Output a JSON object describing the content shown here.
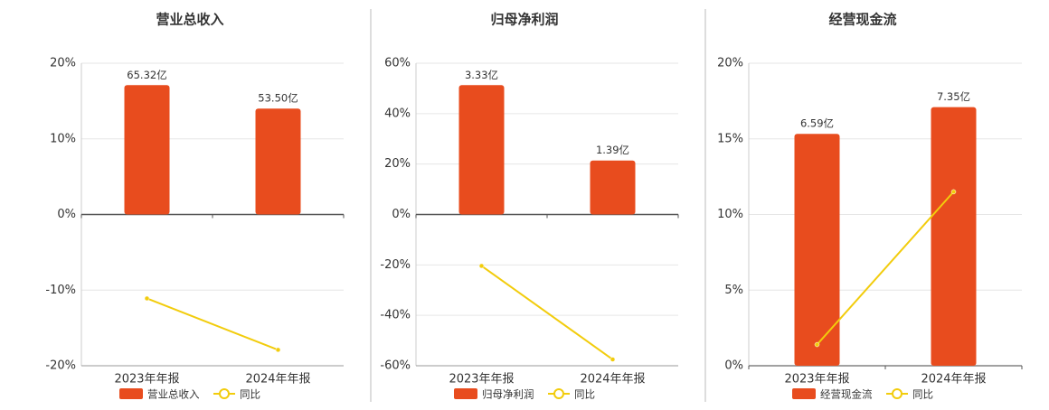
{
  "chart_data": [
    {
      "type": "combo",
      "title": "营业总收入",
      "categories": [
        "2023年年报",
        "2024年年报"
      ],
      "series": [
        {
          "name": "营业总收入",
          "type": "bar",
          "color": "#e84c1e",
          "values": [
            65.32,
            53.5
          ],
          "value_labels": [
            "65.32亿",
            "53.50亿"
          ]
        },
        {
          "name": "同比",
          "type": "line",
          "color": "#f2cc0c",
          "values": [
            -11.1,
            -17.9
          ]
        }
      ],
      "ylim": [
        -20,
        20
      ],
      "yticks": [
        {
          "value": -20,
          "label": "-20%"
        },
        {
          "value": -10,
          "label": "-10%"
        },
        {
          "value": 0,
          "label": "0%"
        },
        {
          "value": 10,
          "label": "10%"
        },
        {
          "value": 20,
          "label": "20%"
        }
      ],
      "grid": true
    },
    {
      "type": "combo",
      "title": "归母净利润",
      "categories": [
        "2023年年报",
        "2024年年报"
      ],
      "series": [
        {
          "name": "归母净利润",
          "type": "bar",
          "color": "#e84c1e",
          "values": [
            3.33,
            1.39
          ],
          "value_labels": [
            "3.33亿",
            "1.39亿"
          ]
        },
        {
          "name": "同比",
          "type": "line",
          "color": "#f2cc0c",
          "values": [
            -20.4,
            -57.5
          ]
        }
      ],
      "ylim": [
        -60,
        60
      ],
      "yticks": [
        {
          "value": -60,
          "label": "-60%"
        },
        {
          "value": -40,
          "label": "-40%"
        },
        {
          "value": -20,
          "label": "-20%"
        },
        {
          "value": 0,
          "label": "0%"
        },
        {
          "value": 20,
          "label": "20%"
        },
        {
          "value": 40,
          "label": "40%"
        },
        {
          "value": 60,
          "label": "60%"
        }
      ],
      "grid": true
    },
    {
      "type": "combo",
      "title": "经营现金流",
      "categories": [
        "2023年年报",
        "2024年年报"
      ],
      "series": [
        {
          "name": "经营现金流",
          "type": "bar",
          "color": "#e84c1e",
          "values": [
            6.59,
            7.35
          ],
          "value_labels": [
            "6.59亿",
            "7.35亿"
          ]
        },
        {
          "name": "同比",
          "type": "line",
          "color": "#f2cc0c",
          "values": [
            1.4,
            11.5
          ]
        }
      ],
      "ylim": [
        0,
        20
      ],
      "yticks": [
        {
          "value": 0,
          "label": "0%"
        },
        {
          "value": 5,
          "label": "5%"
        },
        {
          "value": 10,
          "label": "10%"
        },
        {
          "value": 15,
          "label": "15%"
        },
        {
          "value": 20,
          "label": "20%"
        }
      ],
      "grid": true
    }
  ]
}
